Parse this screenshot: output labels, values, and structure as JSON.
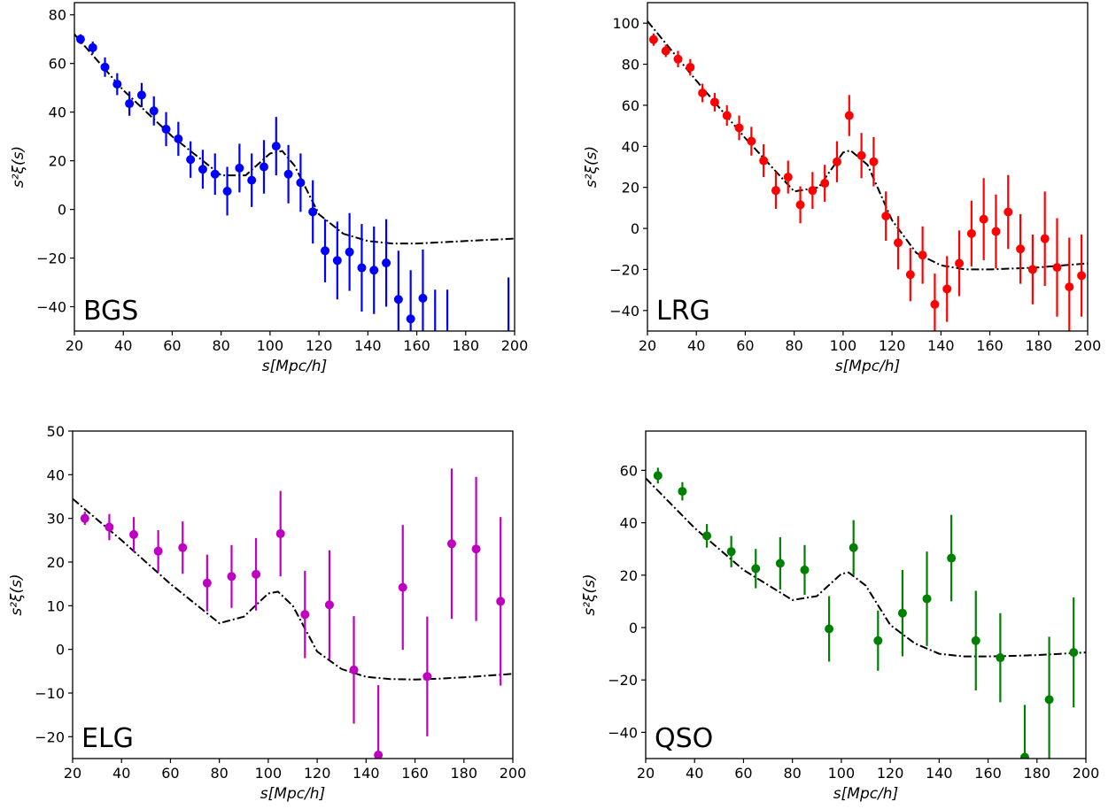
{
  "chart_data": [
    {
      "type": "scatter",
      "panel_label": "BGS",
      "xlabel": "s[Mpc/h]",
      "ylabel": "s²ξ(s)",
      "xlim": [
        20,
        200
      ],
      "ylim": [
        -50,
        85
      ],
      "xticks": [
        20,
        40,
        60,
        80,
        100,
        120,
        140,
        160,
        180,
        200
      ],
      "yticks": [
        -40,
        -20,
        0,
        20,
        40,
        60,
        80
      ],
      "color": "#0000ff",
      "points": [
        {
          "x": 22.5,
          "y": 70,
          "err": 2
        },
        {
          "x": 27.5,
          "y": 66.5,
          "err": 2.5
        },
        {
          "x": 32.5,
          "y": 58.5,
          "err": 4
        },
        {
          "x": 37.5,
          "y": 51.5,
          "err": 4.5
        },
        {
          "x": 42.5,
          "y": 43.5,
          "err": 5
        },
        {
          "x": 47.5,
          "y": 47,
          "err": 5
        },
        {
          "x": 52.5,
          "y": 40.5,
          "err": 6
        },
        {
          "x": 57.5,
          "y": 33,
          "err": 7
        },
        {
          "x": 62.5,
          "y": 29,
          "err": 7
        },
        {
          "x": 67.5,
          "y": 20.5,
          "err": 7.5
        },
        {
          "x": 72.5,
          "y": 16.5,
          "err": 8
        },
        {
          "x": 77.5,
          "y": 14.5,
          "err": 8.5
        },
        {
          "x": 82.5,
          "y": 7.5,
          "err": 10
        },
        {
          "x": 87.5,
          "y": 17,
          "err": 10
        },
        {
          "x": 92.5,
          "y": 12,
          "err": 11
        },
        {
          "x": 97.5,
          "y": 17.5,
          "err": 11
        },
        {
          "x": 102.5,
          "y": 26,
          "err": 12
        },
        {
          "x": 107.5,
          "y": 14.5,
          "err": 12
        },
        {
          "x": 112.5,
          "y": 11,
          "err": 12
        },
        {
          "x": 117.5,
          "y": -1,
          "err": 13
        },
        {
          "x": 122.5,
          "y": -17,
          "err": 13
        },
        {
          "x": 127.5,
          "y": -21,
          "err": 16
        },
        {
          "x": 132.5,
          "y": -17.5,
          "err": 16
        },
        {
          "x": 137.5,
          "y": -24,
          "err": 18
        },
        {
          "x": 142.5,
          "y": -25,
          "err": 18
        },
        {
          "x": 147.5,
          "y": -22,
          "err": 18
        },
        {
          "x": 152.5,
          "y": -37,
          "err": 20
        },
        {
          "x": 157.5,
          "y": -45,
          "err": 20
        },
        {
          "x": 162.5,
          "y": -36.5,
          "err": 20
        },
        {
          "x": 167.5,
          "y": -60,
          "err": 27
        },
        {
          "x": 172.5,
          "y": -60,
          "err": 27
        },
        {
          "x": 197.5,
          "y": -56,
          "err": 28
        }
      ],
      "model": [
        [
          20,
          72
        ],
        [
          40,
          49
        ],
        [
          60,
          30
        ],
        [
          80,
          14
        ],
        [
          90,
          14
        ],
        [
          100,
          23
        ],
        [
          105,
          24
        ],
        [
          110,
          18
        ],
        [
          120,
          -2
        ],
        [
          130,
          -10
        ],
        [
          140,
          -13
        ],
        [
          150,
          -14
        ],
        [
          160,
          -14
        ],
        [
          170,
          -13.5
        ],
        [
          180,
          -13
        ],
        [
          190,
          -12.5
        ],
        [
          200,
          -12
        ]
      ]
    },
    {
      "type": "scatter",
      "panel_label": "LRG",
      "xlabel": "s[Mpc/h]",
      "ylabel": "s²ξ(s)",
      "xlim": [
        20,
        200
      ],
      "ylim": [
        -50,
        110
      ],
      "xticks": [
        20,
        40,
        60,
        80,
        100,
        120,
        140,
        160,
        180,
        200
      ],
      "yticks": [
        -40,
        -20,
        0,
        20,
        40,
        60,
        80,
        100
      ],
      "color": "#ff0000",
      "points": [
        {
          "x": 22.5,
          "y": 92,
          "err": 3
        },
        {
          "x": 27.5,
          "y": 86.5,
          "err": 3
        },
        {
          "x": 32.5,
          "y": 82.5,
          "err": 4
        },
        {
          "x": 37.5,
          "y": 78.5,
          "err": 4
        },
        {
          "x": 42.5,
          "y": 66,
          "err": 4.5
        },
        {
          "x": 47.5,
          "y": 61.5,
          "err": 4.5
        },
        {
          "x": 52.5,
          "y": 55,
          "err": 5
        },
        {
          "x": 57.5,
          "y": 49,
          "err": 6
        },
        {
          "x": 62.5,
          "y": 42.5,
          "err": 7
        },
        {
          "x": 67.5,
          "y": 33,
          "err": 8
        },
        {
          "x": 72.5,
          "y": 18.5,
          "err": 9
        },
        {
          "x": 77.5,
          "y": 25,
          "err": 8
        },
        {
          "x": 82.5,
          "y": 11.5,
          "err": 9
        },
        {
          "x": 87.5,
          "y": 18.5,
          "err": 9
        },
        {
          "x": 92.5,
          "y": 22,
          "err": 9
        },
        {
          "x": 97.5,
          "y": 32.5,
          "err": 10
        },
        {
          "x": 102.5,
          "y": 55,
          "err": 10
        },
        {
          "x": 107.5,
          "y": 35.5,
          "err": 11
        },
        {
          "x": 112.5,
          "y": 32.5,
          "err": 12
        },
        {
          "x": 117.5,
          "y": 6,
          "err": 12
        },
        {
          "x": 122.5,
          "y": -7,
          "err": 13
        },
        {
          "x": 127.5,
          "y": -22.5,
          "err": 13
        },
        {
          "x": 132.5,
          "y": -13,
          "err": 14
        },
        {
          "x": 137.5,
          "y": -37,
          "err": 15
        },
        {
          "x": 142.5,
          "y": -29.5,
          "err": 16
        },
        {
          "x": 147.5,
          "y": -17,
          "err": 16
        },
        {
          "x": 152.5,
          "y": -2.5,
          "err": 16
        },
        {
          "x": 157.5,
          "y": 4.5,
          "err": 20
        },
        {
          "x": 162.5,
          "y": -1.5,
          "err": 18
        },
        {
          "x": 167.5,
          "y": 8,
          "err": 18
        },
        {
          "x": 172.5,
          "y": -10,
          "err": 17
        },
        {
          "x": 177.5,
          "y": -20,
          "err": 17
        },
        {
          "x": 182.5,
          "y": -5,
          "err": 23
        },
        {
          "x": 187.5,
          "y": -19,
          "err": 24
        },
        {
          "x": 192.5,
          "y": -28.5,
          "err": 24
        },
        {
          "x": 197.5,
          "y": -23,
          "err": 20
        }
      ],
      "model": [
        [
          20,
          101
        ],
        [
          40,
          72
        ],
        [
          60,
          44
        ],
        [
          80,
          18
        ],
        [
          90,
          20
        ],
        [
          100,
          37
        ],
        [
          103,
          38
        ],
        [
          110,
          31
        ],
        [
          120,
          4
        ],
        [
          130,
          -12
        ],
        [
          140,
          -18
        ],
        [
          150,
          -20
        ],
        [
          160,
          -20
        ],
        [
          170,
          -19.5
        ],
        [
          180,
          -19
        ],
        [
          190,
          -18
        ],
        [
          200,
          -17
        ]
      ]
    },
    {
      "type": "scatter",
      "panel_label": "ELG",
      "xlabel": "s[Mpc/h]",
      "ylabel": "s²ξ(s)",
      "xlim": [
        20,
        200
      ],
      "ylim": [
        -25,
        50
      ],
      "xticks": [
        20,
        40,
        60,
        80,
        100,
        120,
        140,
        160,
        180,
        200
      ],
      "yticks": [
        -20,
        -10,
        0,
        10,
        20,
        30,
        40,
        50
      ],
      "color": "#c000c0",
      "points": [
        {
          "x": 25,
          "y": 30,
          "err": 1.5
        },
        {
          "x": 35,
          "y": 28,
          "err": 3
        },
        {
          "x": 45,
          "y": 26.3,
          "err": 4
        },
        {
          "x": 55,
          "y": 22.5,
          "err": 4.8
        },
        {
          "x": 65,
          "y": 23.3,
          "err": 6
        },
        {
          "x": 75,
          "y": 15.2,
          "err": 6.5
        },
        {
          "x": 85,
          "y": 16.7,
          "err": 7.2
        },
        {
          "x": 95,
          "y": 17.2,
          "err": 8.3
        },
        {
          "x": 105,
          "y": 26.5,
          "err": 9.8
        },
        {
          "x": 115,
          "y": 8,
          "err": 10
        },
        {
          "x": 125,
          "y": 10.2,
          "err": 12.5
        },
        {
          "x": 135,
          "y": -4.7,
          "err": 12.3
        },
        {
          "x": 145,
          "y": -24.2,
          "err": 16
        },
        {
          "x": 155,
          "y": 14.2,
          "err": 14.3
        },
        {
          "x": 165,
          "y": -6.2,
          "err": 13.7
        },
        {
          "x": 175,
          "y": 24.2,
          "err": 17.2
        },
        {
          "x": 185,
          "y": 23,
          "err": 16.5
        },
        {
          "x": 195,
          "y": 11,
          "err": 19.3
        }
      ],
      "model": [
        [
          20,
          34.5
        ],
        [
          40,
          25
        ],
        [
          60,
          15
        ],
        [
          80,
          6
        ],
        [
          90,
          7.5
        ],
        [
          100,
          12.8
        ],
        [
          104,
          13.2
        ],
        [
          110,
          10
        ],
        [
          120,
          -0.5
        ],
        [
          130,
          -4.5
        ],
        [
          140,
          -6.3
        ],
        [
          150,
          -6.8
        ],
        [
          160,
          -6.9
        ],
        [
          170,
          -6.7
        ],
        [
          180,
          -6.4
        ],
        [
          190,
          -6
        ],
        [
          200,
          -5.6
        ]
      ]
    },
    {
      "type": "scatter",
      "panel_label": "QSO",
      "xlabel": "s[Mpc/h]",
      "ylabel": "s²ξ(s)",
      "xlim": [
        20,
        200
      ],
      "ylim": [
        -50,
        75
      ],
      "xticks": [
        20,
        40,
        60,
        80,
        100,
        120,
        140,
        160,
        180,
        200
      ],
      "yticks": [
        -40,
        -20,
        0,
        20,
        40,
        60
      ],
      "color": "#008000",
      "points": [
        {
          "x": 25,
          "y": 58,
          "err": 3
        },
        {
          "x": 35,
          "y": 52,
          "err": 3.5
        },
        {
          "x": 45,
          "y": 35,
          "err": 4.5
        },
        {
          "x": 55,
          "y": 29,
          "err": 6
        },
        {
          "x": 65,
          "y": 22.5,
          "err": 7.5
        },
        {
          "x": 75,
          "y": 24.5,
          "err": 10
        },
        {
          "x": 85,
          "y": 22,
          "err": 9.5
        },
        {
          "x": 95,
          "y": -0.5,
          "err": 12.5
        },
        {
          "x": 105,
          "y": 30.5,
          "err": 10.5
        },
        {
          "x": 115,
          "y": -5,
          "err": 11.5
        },
        {
          "x": 125,
          "y": 5.5,
          "err": 16.5
        },
        {
          "x": 135,
          "y": 11,
          "err": 18
        },
        {
          "x": 145,
          "y": 26.5,
          "err": 16.5
        },
        {
          "x": 155,
          "y": -5,
          "err": 19
        },
        {
          "x": 165,
          "y": -11.5,
          "err": 17
        },
        {
          "x": 175,
          "y": -49.5,
          "err": 20
        },
        {
          "x": 185,
          "y": -27.5,
          "err": 24
        },
        {
          "x": 195,
          "y": -9.5,
          "err": 21
        }
      ],
      "model": [
        [
          20,
          57
        ],
        [
          40,
          38
        ],
        [
          60,
          22
        ],
        [
          80,
          10.5
        ],
        [
          90,
          12
        ],
        [
          100,
          20.5
        ],
        [
          103,
          21
        ],
        [
          110,
          16
        ],
        [
          120,
          1
        ],
        [
          130,
          -6
        ],
        [
          140,
          -10
        ],
        [
          150,
          -11
        ],
        [
          160,
          -11
        ],
        [
          170,
          -10.8
        ],
        [
          180,
          -10.5
        ],
        [
          190,
          -10
        ],
        [
          200,
          -9.5
        ]
      ]
    }
  ]
}
